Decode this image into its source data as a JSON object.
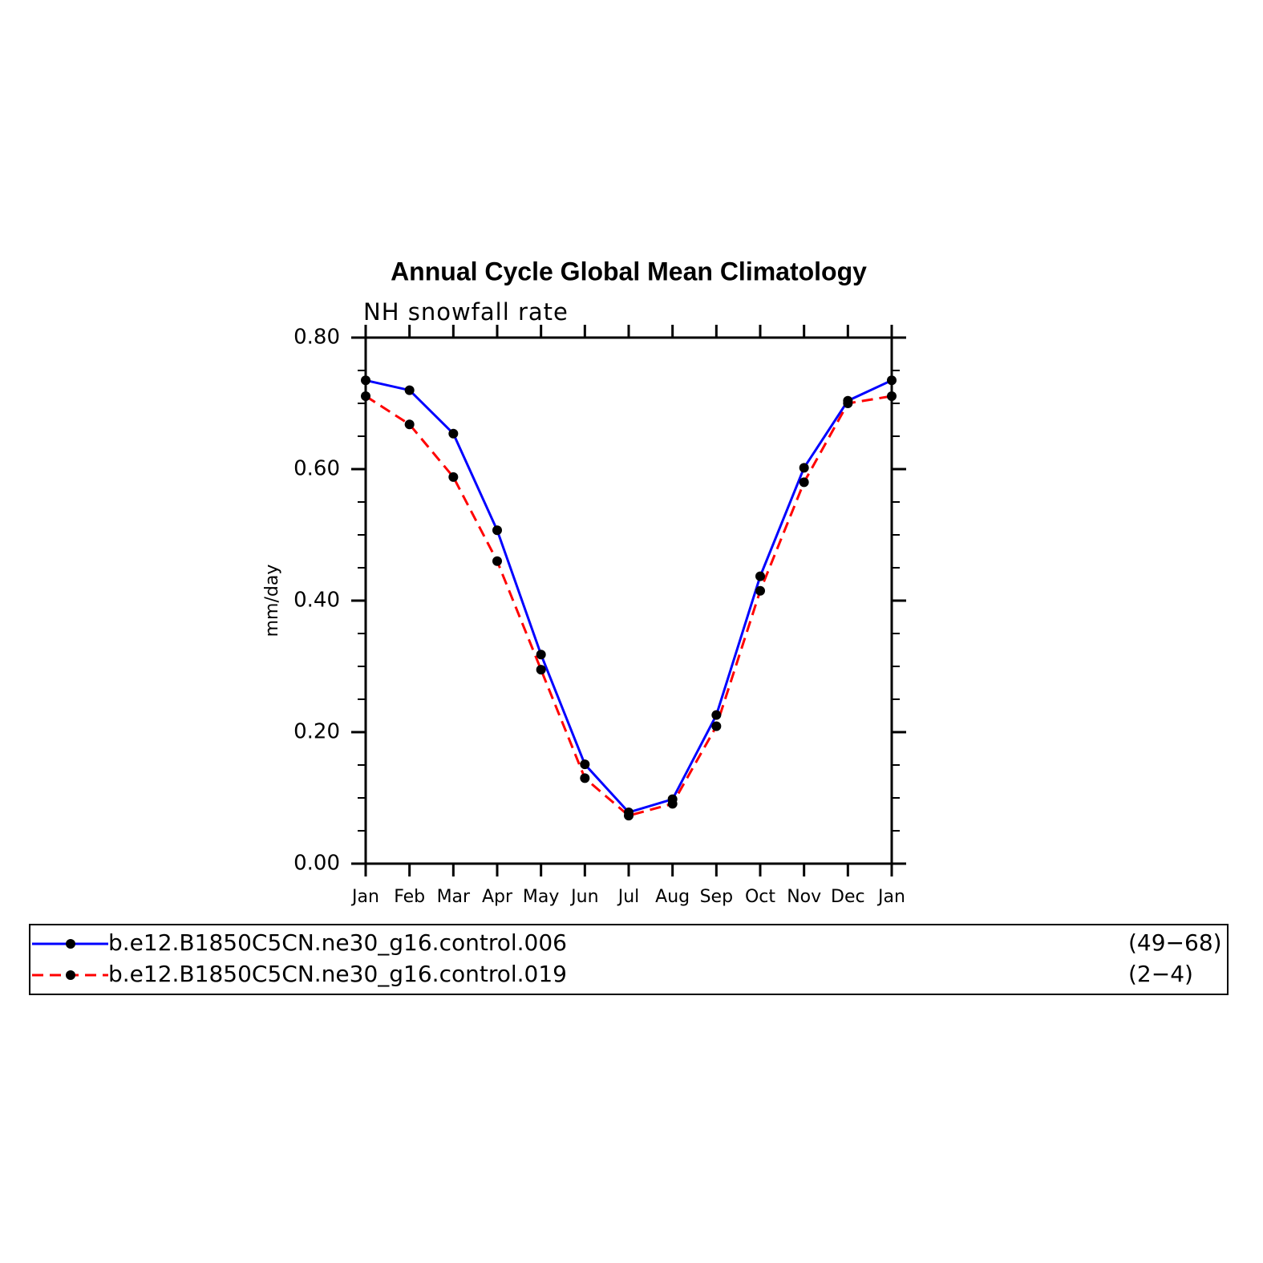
{
  "chart_data": {
    "type": "line",
    "title": "Annual Cycle Global Mean Climatology",
    "subtitle": "NH snowfall rate",
    "y_label": "mm/day",
    "categories": [
      "Jan",
      "Feb",
      "Mar",
      "Apr",
      "May",
      "Jun",
      "Jul",
      "Aug",
      "Sep",
      "Oct",
      "Nov",
      "Dec",
      "Jan"
    ],
    "series": [
      {
        "name": "b.e12.B1850C5CN.ne30_g16.control.006",
        "range": "(49−68)",
        "color": "#0000ff",
        "dash": false,
        "values": [
          0.735,
          0.72,
          0.654,
          0.507,
          0.318,
          0.151,
          0.078,
          0.098,
          0.226,
          0.437,
          0.602,
          0.704,
          0.735
        ]
      },
      {
        "name": "b.e12.B1850C5CN.ne30_g16.control.019",
        "range": "(2−4)",
        "color": "#ff0000",
        "dash": true,
        "values": [
          0.711,
          0.668,
          0.588,
          0.46,
          0.295,
          0.13,
          0.073,
          0.091,
          0.209,
          0.415,
          0.58,
          0.7,
          0.711
        ]
      }
    ],
    "marker_color": "#000000",
    "ylim": [
      0,
      0.8
    ],
    "yticks": [
      {
        "value": 0,
        "label": "0.00"
      },
      {
        "value": 0.2,
        "label": "0.20"
      },
      {
        "value": 0.4,
        "label": "0.40"
      },
      {
        "value": 0.6,
        "label": "0.60"
      },
      {
        "value": 0.8,
        "label": "0.80"
      }
    ],
    "yminor_ticks": [
      0.05,
      0.1,
      0.15,
      0.25,
      0.3,
      0.35,
      0.45,
      0.5,
      0.55,
      0.65,
      0.7,
      0.75
    ]
  }
}
